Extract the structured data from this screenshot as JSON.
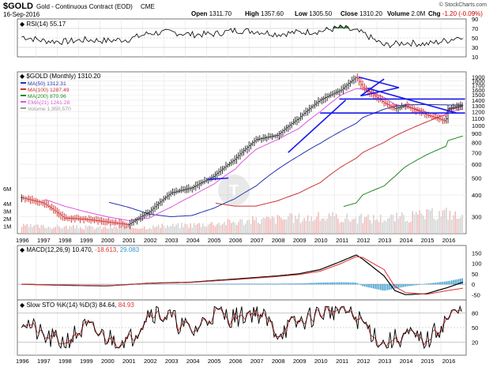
{
  "header": {
    "symbol": "$GOLD",
    "description": "Gold - Continuous Contract (EOD)",
    "exchange": "CME",
    "date": "16-Sep-2016",
    "open_label": "Open",
    "open": "1311.70",
    "high_label": "High",
    "high": "1357.60",
    "low_label": "Low",
    "low": "1305.50",
    "close_label": "Close",
    "close": "1310.20",
    "volume_label": "Volume",
    "volume": "2.0M",
    "chg_label": "Chg",
    "chg": "-1.20 (-0.09%)",
    "watermark": "© StockCharts.com"
  },
  "rsi_label": "RSI(14) 55.17",
  "price_legend": {
    "main": "$GOLD (Monthly) 1310.20",
    "items": [
      {
        "text": "MA(50) 1312.31",
        "color": "#2233aa"
      },
      {
        "text": "MA(100) 1287.49",
        "color": "#cc3333"
      },
      {
        "text": "MA(200) 870.96",
        "color": "#228822"
      },
      {
        "text": "EMA(21) 1241.28",
        "color": "#dd55dd"
      },
      {
        "text": "Volume 1,950,570",
        "color": "#999999"
      }
    ]
  },
  "macd_label": {
    "base": "MACD(12,26,9) 10.470,",
    "signal": "-18.613,",
    "hist": "29.083"
  },
  "sto_label": {
    "base": "Slow STO %K(14) %D(3) 84.64,",
    "d": "84.93"
  },
  "colors": {
    "up": "#222222",
    "down": "#cc2222",
    "ma50": "#2233aa",
    "ma100": "#cc3333",
    "ma200": "#228822",
    "ema21": "#dd55dd",
    "trend": "#1a1aee",
    "macd": "#000000",
    "signal": "#dd3333",
    "hist": "#3399cc",
    "rsi_fill": "#2e7d32"
  },
  "chart_data": [
    {
      "type": "line",
      "title": "RSI(14) 55.17",
      "x": [
        1996,
        1997,
        1998,
        1999,
        2000,
        2001,
        2002,
        2003,
        2004,
        2005,
        2006,
        2007,
        2008,
        2009,
        2010,
        2011,
        2012,
        2013,
        2014,
        2015,
        2016,
        2016.7
      ],
      "values": [
        53,
        44,
        42,
        46,
        44,
        47,
        60,
        62,
        57,
        58,
        66,
        64,
        58,
        62,
        64,
        72,
        60,
        34,
        40,
        37,
        45,
        55
      ],
      "ylim": [
        10,
        90
      ],
      "ticks": [
        30,
        50,
        70
      ]
    },
    {
      "type": "line",
      "title": "$GOLD (Monthly) 1310.20",
      "x": [
        1996,
        1997,
        1998,
        1999,
        2000,
        2001,
        2002,
        2003,
        2004,
        2005,
        2006,
        2007,
        2008,
        2009,
        2010,
        2011,
        2011.7,
        2012,
        2013,
        2013.5,
        2014,
        2015,
        2015.9,
        2016,
        2016.7
      ],
      "series": [
        {
          "name": "$GOLD (Monthly) 1310.20",
          "values": [
            385,
            360,
            295,
            290,
            280,
            270,
            320,
            410,
            440,
            510,
            640,
            830,
            880,
            1100,
            1400,
            1600,
            1900,
            1650,
            1350,
            1250,
            1300,
            1150,
            1060,
            1250,
            1310
          ]
        },
        {
          "name": "MA(50) 1312.31",
          "values": [
            null,
            null,
            null,
            null,
            365,
            340,
            310,
            300,
            305,
            335,
            380,
            450,
            560,
            670,
            790,
            930,
            1030,
            1110,
            1240,
            1290,
            1315,
            1320,
            1315,
            1312,
            1312
          ]
        },
        {
          "name": "MA(100) 1287.49",
          "values": [
            null,
            null,
            null,
            null,
            null,
            null,
            null,
            null,
            null,
            360,
            345,
            345,
            370,
            410,
            470,
            580,
            650,
            700,
            800,
            870,
            930,
            1050,
            1160,
            1230,
            1287
          ]
        },
        {
          "name": "MA(200) 870.96",
          "values": [
            null,
            null,
            null,
            null,
            null,
            null,
            null,
            null,
            null,
            null,
            null,
            null,
            null,
            null,
            null,
            340,
            360,
            400,
            450,
            510,
            580,
            680,
            760,
            820,
            871
          ]
        },
        {
          "name": "EMA(21) 1241.28",
          "values": [
            null,
            380,
            345,
            320,
            300,
            285,
            295,
            340,
            395,
            460,
            560,
            730,
            830,
            960,
            1200,
            1500,
            1630,
            1620,
            1450,
            1320,
            1290,
            1190,
            1130,
            1200,
            1241
          ]
        }
      ],
      "ylim": [
        250,
        1950
      ],
      "yscale": "log",
      "yticks": [
        300,
        400,
        500,
        600,
        700,
        800,
        900,
        1000,
        1100,
        1200,
        1300,
        1400,
        1500,
        1600,
        1700,
        1800,
        1900
      ],
      "volume": {
        "name": "Volume 1,950,570",
        "x": [
          1996,
          1998,
          2000,
          2002,
          2004,
          2006,
          2008,
          2010,
          2012,
          2014,
          2016,
          2016.7
        ],
        "values": [
          1.0,
          0.9,
          0.8,
          0.9,
          1.2,
          1.6,
          2.0,
          2.2,
          2.0,
          2.2,
          2.8,
          2.0
        ],
        "ticks": [
          "1M",
          "2M",
          "3M",
          "4M",
          "6M"
        ]
      },
      "trendlines": "blue channel and triangle lines 2011–2016, horizontal levels ~1420 and ~1180"
    },
    {
      "type": "line",
      "title": "MACD(12,26,9) 10.470, -18.613, 29.083",
      "x": [
        1996,
        1998,
        2000,
        2002,
        2004,
        2006,
        2008,
        2009,
        2010,
        2011,
        2011.7,
        2012,
        2013,
        2013.5,
        2014,
        2015,
        2016,
        2016.7
      ],
      "series": [
        {
          "name": "MACD",
          "values": [
            0,
            -5,
            -8,
            5,
            10,
            25,
            40,
            50,
            70,
            110,
            140,
            120,
            40,
            -30,
            -50,
            -45,
            -15,
            10
          ]
        },
        {
          "name": "Signal",
          "values": [
            0,
            -4,
            -7,
            4,
            9,
            22,
            37,
            46,
            62,
            100,
            132,
            128,
            70,
            -10,
            -40,
            -48,
            -30,
            -19
          ]
        },
        {
          "name": "Histogram",
          "values": [
            0,
            -1,
            -1,
            1,
            1,
            3,
            3,
            4,
            8,
            10,
            8,
            -8,
            -30,
            -20,
            -10,
            3,
            15,
            29
          ]
        }
      ],
      "ylim": [
        -60,
        170
      ],
      "ticks": [
        -50,
        0,
        50,
        100,
        150
      ]
    },
    {
      "type": "line",
      "title": "Slow STO %K(14) %D(3) 84.64, 84.93",
      "x": [
        1996,
        1997,
        1998,
        1999,
        2000,
        2001,
        2002,
        2003,
        2004,
        2005,
        2006,
        2007,
        2008,
        2009,
        2010,
        2011,
        2012,
        2013,
        2014,
        2015,
        2016,
        2016.7
      ],
      "series": [
        {
          "name": "%K",
          "values": [
            70,
            30,
            20,
            50,
            30,
            20,
            85,
            70,
            40,
            80,
            70,
            85,
            40,
            60,
            80,
            90,
            60,
            15,
            35,
            20,
            70,
            85
          ]
        },
        {
          "name": "%D",
          "values": [
            68,
            33,
            23,
            48,
            32,
            23,
            80,
            72,
            42,
            77,
            72,
            83,
            43,
            58,
            78,
            88,
            62,
            18,
            33,
            22,
            65,
            85
          ]
        }
      ],
      "ylim": [
        0,
        100
      ],
      "ticks": [
        20,
        50,
        80
      ]
    }
  ],
  "xaxis_years": [
    "1996",
    "1997",
    "1998",
    "1999",
    "2000",
    "2001",
    "2002",
    "2003",
    "2004",
    "2005",
    "2006",
    "2007",
    "2008",
    "2009",
    "2010",
    "2011",
    "2012",
    "2013",
    "2014",
    "2015",
    "2016"
  ]
}
